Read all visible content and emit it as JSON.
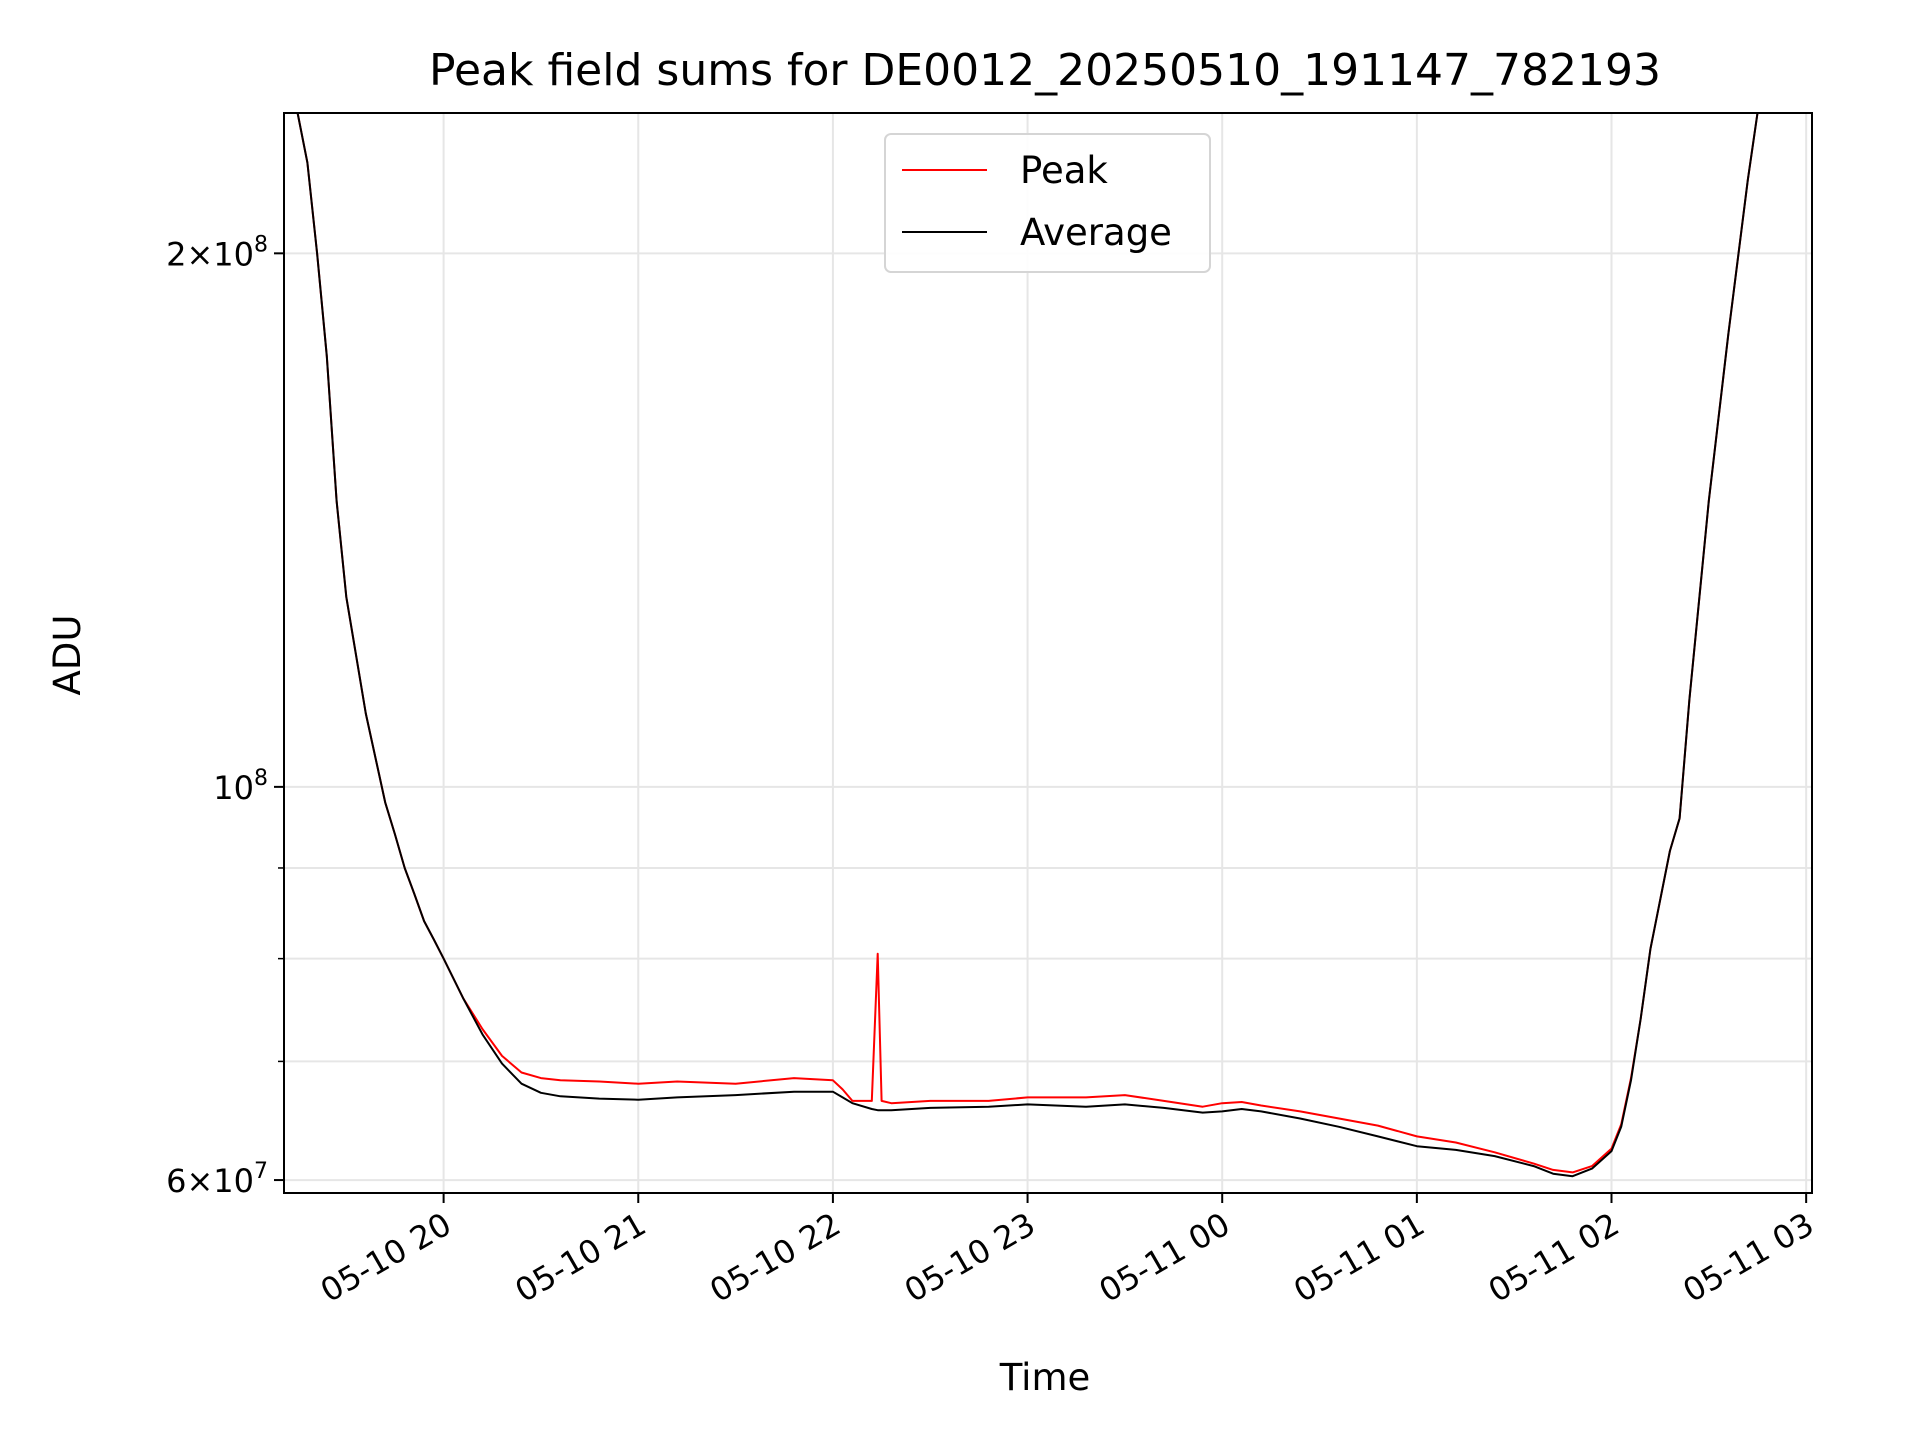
{
  "chart_data": {
    "type": "line",
    "title": "Peak field sums for DE0012_20250510_191147_782193",
    "xlabel": "Time",
    "ylabel": "ADU",
    "yscale": "log",
    "ylim": [
      59000000,
      240000000
    ],
    "xlim_hours": [
      19.18,
      27.03
    ],
    "grid": true,
    "legend_position": "top-center",
    "x_ticks": [
      {
        "label": "05-10 20",
        "hour": 20
      },
      {
        "label": "05-10 21",
        "hour": 21
      },
      {
        "label": "05-10 22",
        "hour": 22
      },
      {
        "label": "05-10 23",
        "hour": 23
      },
      {
        "label": "05-11 00",
        "hour": 24
      },
      {
        "label": "05-11 01",
        "hour": 25
      },
      {
        "label": "05-11 02",
        "hour": 26
      },
      {
        "label": "05-11 03",
        "hour": 27
      }
    ],
    "y_major_ticks": [
      {
        "base": "2",
        "exp": "8",
        "value": 200000000
      },
      {
        "base": "",
        "exp": "8",
        "value": 100000000
      },
      {
        "base": "6",
        "exp": "7",
        "value": 60000000
      }
    ],
    "y_minor_values": [
      70000000,
      80000000,
      90000000
    ],
    "series": [
      {
        "name": "Peak",
        "color": "#ff0000",
        "x_hours": [
          19.18,
          19.25,
          19.3,
          19.35,
          19.4,
          19.45,
          19.5,
          19.6,
          19.7,
          19.75,
          19.8,
          19.85,
          19.9,
          19.95,
          20.0,
          20.1,
          20.2,
          20.3,
          20.4,
          20.5,
          20.6,
          20.8,
          21.0,
          21.2,
          21.5,
          21.8,
          22.0,
          22.05,
          22.1,
          22.2,
          22.23,
          22.25,
          22.3,
          22.5,
          22.8,
          23.0,
          23.3,
          23.5,
          23.7,
          23.9,
          24.0,
          24.1,
          24.2,
          24.4,
          24.6,
          24.8,
          25.0,
          25.2,
          25.4,
          25.6,
          25.7,
          25.8,
          25.9,
          26.0,
          26.05,
          26.1,
          26.15,
          26.2,
          26.3,
          26.35,
          26.4,
          26.5,
          26.6,
          26.7,
          26.75
        ],
        "values": [
          240000000,
          240000000,
          225000000,
          200000000,
          175000000,
          145000000,
          128000000,
          110000000,
          98000000,
          94000000,
          90000000,
          87000000,
          84000000,
          82000000,
          80000000,
          76000000,
          73000000,
          70500000,
          69000000,
          68500000,
          68300000,
          68200000,
          68000000,
          68200000,
          68000000,
          68500000,
          68300000,
          67500000,
          66500000,
          66500000,
          80500000,
          66500000,
          66300000,
          66500000,
          66500000,
          66800000,
          66800000,
          67000000,
          66500000,
          66000000,
          66300000,
          66400000,
          66100000,
          65600000,
          65000000,
          64400000,
          63500000,
          63000000,
          62200000,
          61300000,
          60800000,
          60600000,
          61100000,
          62500000,
          64500000,
          68500000,
          74000000,
          81000000,
          92000000,
          96000000,
          112000000,
          145000000,
          180000000,
          220000000,
          240000000
        ]
      },
      {
        "name": "Average",
        "color": "#000000",
        "x_hours": [
          19.18,
          19.25,
          19.3,
          19.35,
          19.4,
          19.45,
          19.5,
          19.6,
          19.7,
          19.75,
          19.8,
          19.85,
          19.9,
          19.95,
          20.0,
          20.1,
          20.2,
          20.3,
          20.4,
          20.5,
          20.6,
          20.8,
          21.0,
          21.2,
          21.5,
          21.8,
          22.0,
          22.05,
          22.1,
          22.2,
          22.23,
          22.25,
          22.3,
          22.5,
          22.8,
          23.0,
          23.3,
          23.5,
          23.7,
          23.9,
          24.0,
          24.1,
          24.2,
          24.4,
          24.6,
          24.8,
          25.0,
          25.2,
          25.4,
          25.6,
          25.7,
          25.8,
          25.9,
          26.0,
          26.05,
          26.1,
          26.15,
          26.2,
          26.3,
          26.35,
          26.4,
          26.5,
          26.6,
          26.7,
          26.75
        ],
        "values": [
          240000000,
          240000000,
          225000000,
          200000000,
          175000000,
          145000000,
          128000000,
          110000000,
          98000000,
          94000000,
          90000000,
          87000000,
          84000000,
          82000000,
          80000000,
          76000000,
          72500000,
          69800000,
          68000000,
          67200000,
          66900000,
          66700000,
          66600000,
          66800000,
          67000000,
          67300000,
          67300000,
          66800000,
          66300000,
          65800000,
          65700000,
          65700000,
          65700000,
          65900000,
          66000000,
          66200000,
          66000000,
          66200000,
          65900000,
          65500000,
          65600000,
          65800000,
          65600000,
          65000000,
          64300000,
          63500000,
          62700000,
          62400000,
          61900000,
          61100000,
          60500000,
          60300000,
          60900000,
          62300000,
          64300000,
          68300000,
          74000000,
          81000000,
          92000000,
          96000000,
          112000000,
          145000000,
          180000000,
          220000000,
          240000000
        ]
      }
    ]
  }
}
